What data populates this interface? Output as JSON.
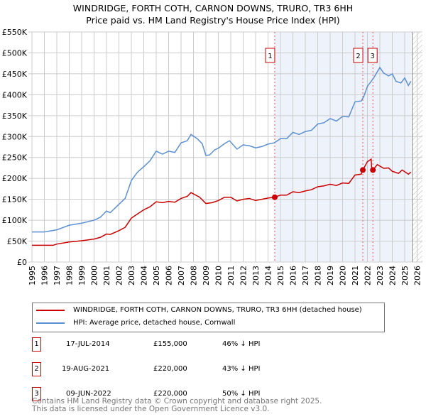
{
  "chart_data": {
    "type": "line",
    "title": "WINDRIDGE, FORTH COTH, CARNON DOWNS, TRURO, TR3 6HH",
    "subtitle": "Price paid vs. HM Land Registry's House Price Index (HPI)",
    "xlim": [
      1995,
      2026
    ],
    "ylim": [
      0,
      550000
    ],
    "x_ticks": [
      "1995",
      "1996",
      "1997",
      "1998",
      "1999",
      "2000",
      "2001",
      "2002",
      "2003",
      "2004",
      "2005",
      "2006",
      "2007",
      "2008",
      "2009",
      "2010",
      "2011",
      "2012",
      "2013",
      "2014",
      "2015",
      "2016",
      "2017",
      "2018",
      "2019",
      "2020",
      "2021",
      "2022",
      "2023",
      "2024",
      "2025",
      "2026"
    ],
    "y_ticks": [
      "£0",
      "£50K",
      "£100K",
      "£150K",
      "£200K",
      "£250K",
      "£300K",
      "£350K",
      "£400K",
      "£450K",
      "£500K",
      "£550K"
    ],
    "grid": true,
    "shaded_range": [
      2014.54,
      2025.5
    ],
    "hatched_from": 2025.6,
    "series": [
      {
        "name": "WINDRIDGE, FORTH COTH, CARNON DOWNS, TRURO, TR3 6HH (detached house)",
        "color": "#cc0000",
        "points": [
          [
            1995,
            40
          ],
          [
            1996,
            40
          ],
          [
            1996.7,
            40
          ],
          [
            1997,
            43
          ],
          [
            1998,
            48
          ],
          [
            1999,
            51
          ],
          [
            2000,
            55
          ],
          [
            2000.5,
            59
          ],
          [
            2001,
            67
          ],
          [
            2001.3,
            66
          ],
          [
            2002,
            75
          ],
          [
            2002.5,
            83
          ],
          [
            2003,
            105
          ],
          [
            2003.5,
            115
          ],
          [
            2004,
            125
          ],
          [
            2004.5,
            132
          ],
          [
            2005,
            144
          ],
          [
            2005.5,
            142
          ],
          [
            2006,
            145
          ],
          [
            2006.5,
            143
          ],
          [
            2007,
            152
          ],
          [
            2007.5,
            157
          ],
          [
            2007.8,
            166
          ],
          [
            2008.5,
            155
          ],
          [
            2009,
            140
          ],
          [
            2009.5,
            142
          ],
          [
            2010,
            147
          ],
          [
            2010.5,
            155
          ],
          [
            2011,
            155
          ],
          [
            2011.5,
            146
          ],
          [
            2012,
            150
          ],
          [
            2012.5,
            152
          ],
          [
            2013,
            147
          ],
          [
            2013.5,
            150
          ],
          [
            2014,
            153
          ],
          [
            2014.54,
            155
          ],
          [
            2015,
            160
          ],
          [
            2015.5,
            160
          ],
          [
            2016,
            168
          ],
          [
            2016.5,
            166
          ],
          [
            2017,
            170
          ],
          [
            2017.5,
            173
          ],
          [
            2018,
            180
          ],
          [
            2018.5,
            182
          ],
          [
            2019,
            186
          ],
          [
            2019.5,
            183
          ],
          [
            2020,
            189
          ],
          [
            2020.5,
            188
          ],
          [
            2021,
            208
          ],
          [
            2021.5,
            210
          ],
          [
            2021.63,
            220
          ],
          [
            2022,
            240
          ],
          [
            2022.3,
            246
          ],
          [
            2022.35,
            222
          ],
          [
            2022.44,
            220
          ],
          [
            2022.8,
            233
          ],
          [
            2023.3,
            224
          ],
          [
            2023.7,
            225
          ],
          [
            2024,
            217
          ],
          [
            2024.5,
            212
          ],
          [
            2024.8,
            220
          ],
          [
            2025.3,
            210
          ],
          [
            2025.5,
            215
          ]
        ]
      },
      {
        "name": "HPI: Average price, detached house, Cornwall",
        "color": "#5b8fd4",
        "points": [
          [
            1995,
            72
          ],
          [
            1996,
            72
          ],
          [
            1997,
            77
          ],
          [
            1998,
            88
          ],
          [
            1999,
            93
          ],
          [
            2000,
            100
          ],
          [
            2000.5,
            107
          ],
          [
            2001,
            122
          ],
          [
            2001.3,
            118
          ],
          [
            2002,
            138
          ],
          [
            2002.5,
            152
          ],
          [
            2003,
            195
          ],
          [
            2003.5,
            215
          ],
          [
            2004,
            228
          ],
          [
            2004.5,
            242
          ],
          [
            2005,
            265
          ],
          [
            2005.5,
            258
          ],
          [
            2006,
            265
          ],
          [
            2006.5,
            262
          ],
          [
            2007,
            285
          ],
          [
            2007.5,
            290
          ],
          [
            2007.8,
            305
          ],
          [
            2008.3,
            295
          ],
          [
            2008.7,
            283
          ],
          [
            2009,
            255
          ],
          [
            2009.3,
            256
          ],
          [
            2009.7,
            268
          ],
          [
            2010,
            272
          ],
          [
            2010.5,
            283
          ],
          [
            2010.9,
            290
          ],
          [
            2011.5,
            270
          ],
          [
            2012,
            280
          ],
          [
            2012.5,
            278
          ],
          [
            2013,
            273
          ],
          [
            2013.5,
            276
          ],
          [
            2014,
            282
          ],
          [
            2014.5,
            285
          ],
          [
            2015,
            295
          ],
          [
            2015.5,
            295
          ],
          [
            2016,
            310
          ],
          [
            2016.5,
            305
          ],
          [
            2017,
            312
          ],
          [
            2017.5,
            315
          ],
          [
            2018,
            330
          ],
          [
            2018.5,
            333
          ],
          [
            2019,
            343
          ],
          [
            2019.5,
            337
          ],
          [
            2020,
            348
          ],
          [
            2020.5,
            347
          ],
          [
            2021,
            383
          ],
          [
            2021.5,
            385
          ],
          [
            2021.7,
            395
          ],
          [
            2022,
            420
          ],
          [
            2022.5,
            440
          ],
          [
            2023,
            465
          ],
          [
            2023.3,
            452
          ],
          [
            2023.7,
            445
          ],
          [
            2024,
            450
          ],
          [
            2024.3,
            432
          ],
          [
            2024.7,
            428
          ],
          [
            2025,
            440
          ],
          [
            2025.3,
            422
          ],
          [
            2025.5,
            432
          ]
        ]
      }
    ],
    "sales": [
      {
        "label": "1",
        "x": 2014.54,
        "price": 155,
        "date": "17-JUL-2014",
        "price_text": "£155,000",
        "hpi": "46% ↓ HPI"
      },
      {
        "label": "2",
        "x": 2021.63,
        "price": 220,
        "date": "19-AUG-2021",
        "price_text": "£220,000",
        "hpi": "43% ↓ HPI"
      },
      {
        "label": "3",
        "x": 2022.44,
        "price": 220,
        "date": "09-JUN-2022",
        "price_text": "£220,000",
        "hpi": "50% ↓ HPI"
      }
    ]
  },
  "footer": {
    "line1": "Contains HM Land Registry data © Crown copyright and database right 2025.",
    "line2": "This data is licensed under the Open Government Licence v3.0."
  }
}
